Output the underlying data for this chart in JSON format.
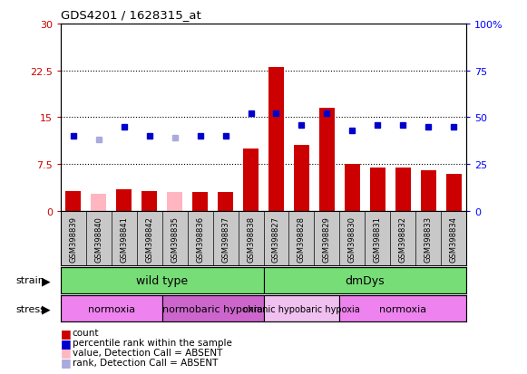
{
  "title": "GDS4201 / 1628315_at",
  "samples": [
    "GSM398839",
    "GSM398840",
    "GSM398841",
    "GSM398842",
    "GSM398835",
    "GSM398836",
    "GSM398837",
    "GSM398838",
    "GSM398827",
    "GSM398828",
    "GSM398829",
    "GSM398830",
    "GSM398831",
    "GSM398832",
    "GSM398833",
    "GSM398834"
  ],
  "count_values": [
    3.2,
    2.8,
    3.5,
    3.2,
    3.0,
    3.0,
    3.0,
    10.0,
    23.0,
    10.5,
    16.5,
    7.5,
    7.0,
    7.0,
    6.5,
    6.0
  ],
  "count_absent": [
    false,
    true,
    false,
    false,
    true,
    false,
    false,
    false,
    false,
    false,
    false,
    false,
    false,
    false,
    false,
    false
  ],
  "rank_values": [
    40,
    38,
    45,
    40,
    39,
    40,
    40,
    52,
    52,
    46,
    52,
    43,
    46,
    46,
    45,
    45
  ],
  "rank_absent_flags": [
    false,
    true,
    false,
    false,
    true,
    false,
    false,
    false,
    false,
    false,
    false,
    false,
    false,
    false,
    false,
    false
  ],
  "ylim_left": [
    0,
    30
  ],
  "ylim_right": [
    0,
    100
  ],
  "yticks_left": [
    0,
    7.5,
    15,
    22.5,
    30
  ],
  "yticks_right": [
    0,
    25,
    50,
    75,
    100
  ],
  "ytick_labels_left": [
    "0",
    "7.5",
    "15",
    "22.5",
    "30"
  ],
  "ytick_labels_right": [
    "0",
    "25",
    "50",
    "75",
    "100%"
  ],
  "strain_groups": [
    {
      "label": "wild type",
      "start": 0,
      "end": 8,
      "color": "#77DD77"
    },
    {
      "label": "dmDys",
      "start": 8,
      "end": 16,
      "color": "#77DD77"
    }
  ],
  "stress_groups": [
    {
      "label": "normoxia",
      "start": 0,
      "end": 4,
      "color": "#EE82EE"
    },
    {
      "label": "normobaric hypoxia",
      "start": 4,
      "end": 8,
      "color": "#CC66CC"
    },
    {
      "label": "chronic hypobaric hypoxia",
      "start": 8,
      "end": 11,
      "color": "#F0C0F0"
    },
    {
      "label": "normoxia",
      "start": 11,
      "end": 16,
      "color": "#EE82EE"
    }
  ],
  "bar_color_present": "#CC0000",
  "bar_color_absent": "#FFB6C1",
  "dot_color_present": "#0000CC",
  "dot_color_absent": "#AAAADD",
  "bg_color": "#C8C8C8",
  "dotted_line_color": "#000000"
}
